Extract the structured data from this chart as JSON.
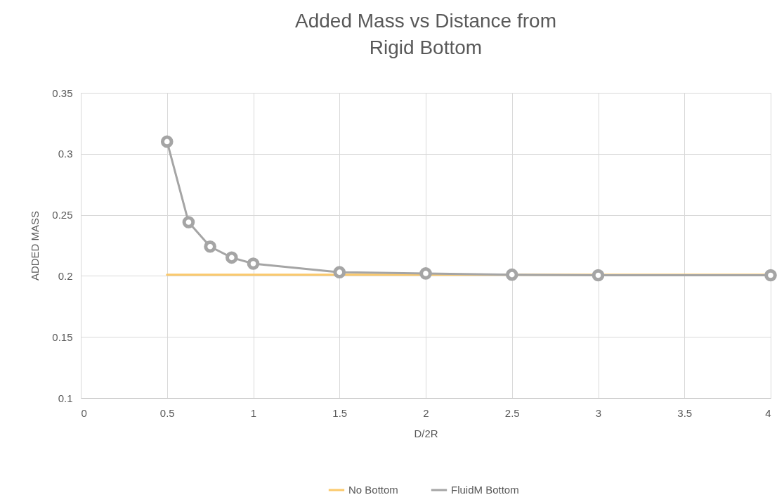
{
  "chart_data": {
    "type": "line",
    "title": "Added Mass vs Distance from Rigid Bottom",
    "xlabel": "D/2R",
    "ylabel": "ADDED MASS",
    "x": [
      0.5,
      0.625,
      0.75,
      0.875,
      1,
      1.5,
      2,
      2.5,
      3,
      4
    ],
    "series": [
      {
        "name": "No Bottom",
        "color": "#fbc96b",
        "marker": "none",
        "x": [
          0.5,
          4
        ],
        "values": [
          0.201,
          0.201
        ]
      },
      {
        "name": "FluidM Bottom",
        "color": "#a5a5a5",
        "marker": "circle",
        "values": [
          0.31,
          0.244,
          0.224,
          0.215,
          0.21,
          0.203,
          0.202,
          0.201,
          0.2005,
          0.2005
        ]
      }
    ],
    "xlim": [
      0,
      4
    ],
    "xticks": [
      0,
      0.5,
      1,
      1.5,
      2,
      2.5,
      3,
      3.5,
      4
    ],
    "ylim": [
      0.1,
      0.35
    ],
    "yticks": [
      0.1,
      0.15,
      0.2,
      0.25,
      0.3,
      0.35
    ],
    "grid": true,
    "legend": "bottom"
  }
}
